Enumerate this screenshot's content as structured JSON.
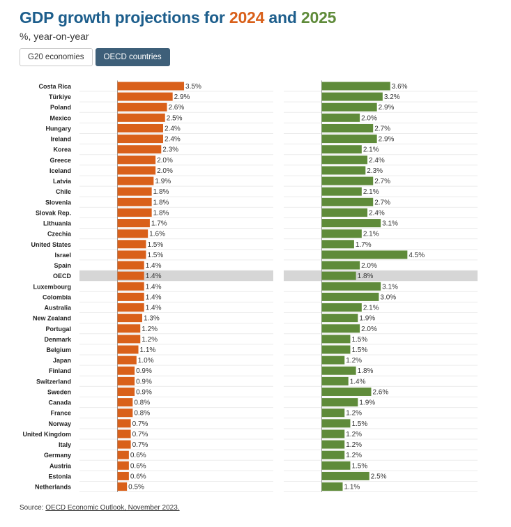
{
  "header": {
    "title_prefix": "GDP growth projections for ",
    "title_year1": "2024",
    "title_mid": " and ",
    "title_year2": "2025",
    "subtitle": "%, year-on-year"
  },
  "tabs": [
    {
      "label": "G20 economies",
      "active": false
    },
    {
      "label": "OECD countries",
      "active": true
    }
  ],
  "source": {
    "prefix": "Source: ",
    "link_text": "OECD Economic Outlook, November 2023."
  },
  "colors": {
    "series_2024": "#d9601a",
    "series_2025": "#5f8b3a",
    "highlight_row": "#d6d6d6",
    "title_blue": "#1d5e8c",
    "tab_active": "#3e5f79"
  },
  "chart_data": {
    "type": "bar",
    "orientation": "horizontal",
    "highlight_category": "OECD",
    "categories": [
      "Costa Rica",
      "Türkiye",
      "Poland",
      "Mexico",
      "Hungary",
      "Ireland",
      "Korea",
      "Greece",
      "Iceland",
      "Latvia",
      "Chile",
      "Slovenia",
      "Slovak Rep.",
      "Lithuania",
      "Czechia",
      "United States",
      "Israel",
      "Spain",
      "OECD",
      "Luxembourg",
      "Colombia",
      "Australia",
      "New Zealand",
      "Portugal",
      "Denmark",
      "Belgium",
      "Japan",
      "Finland",
      "Switzerland",
      "Sweden",
      "Canada",
      "France",
      "Norway",
      "United Kingdom",
      "Italy",
      "Germany",
      "Austria",
      "Estonia",
      "Netherlands"
    ],
    "series": [
      {
        "values": [
          3.5,
          2.9,
          2.6,
          2.5,
          2.4,
          2.4,
          2.3,
          2.0,
          2.0,
          1.9,
          1.8,
          1.8,
          1.8,
          1.7,
          1.6,
          1.5,
          1.5,
          1.4,
          1.4,
          1.4,
          1.4,
          1.4,
          1.3,
          1.2,
          1.2,
          1.1,
          1.0,
          0.9,
          0.9,
          0.9,
          0.8,
          0.8,
          0.7,
          0.7,
          0.7,
          0.6,
          0.6,
          0.6,
          0.5
        ],
        "labels": [
          "3.5%",
          "2.9%",
          "2.6%",
          "2.5%",
          "2.4%",
          "2.4%",
          "2.3%",
          "2.0%",
          "2.0%",
          "1.9%",
          "1.8%",
          "1.8%",
          "1.8%",
          "1.7%",
          "1.6%",
          "1.5%",
          "1.5%",
          "1.4%",
          "1.4%",
          "1.4%",
          "1.4%",
          "1.4%",
          "1.3%",
          "1.2%",
          "1.2%",
          "1.1%",
          "1.0%",
          "0.9%",
          "0.9%",
          "0.9%",
          "0.8%",
          "0.8%",
          "0.7%",
          "0.7%",
          "0.7%",
          "0.6%",
          "0.6%",
          "0.6%",
          "0.5%"
        ],
        "color": "#d9601a"
      },
      {
        "values": [
          3.6,
          3.2,
          2.9,
          2.0,
          2.7,
          2.9,
          2.1,
          2.4,
          2.3,
          2.7,
          2.1,
          2.7,
          2.4,
          3.1,
          2.1,
          1.7,
          4.5,
          2.0,
          1.8,
          3.1,
          3.0,
          2.1,
          1.9,
          2.0,
          1.5,
          1.5,
          1.2,
          1.8,
          1.4,
          2.6,
          1.9,
          1.2,
          1.5,
          1.2,
          1.2,
          1.2,
          1.5,
          2.5,
          1.1
        ],
        "labels": [
          "3.6%",
          "3.2%",
          "2.9%",
          "2.0%",
          "2.7%",
          "2.9%",
          "2.1%",
          "2.4%",
          "2.3%",
          "2.7%",
          "2.1%",
          "2.7%",
          "2.4%",
          "3.1%",
          "2.1%",
          "1.7%",
          "4.5%",
          "2.0%",
          "1.8%",
          "3.1%",
          "3.0%",
          "2.1%",
          "1.9%",
          "2.0%",
          "1.5%",
          "1.5%",
          "1.2%",
          "1.8%",
          "1.4%",
          "2.6%",
          "1.9%",
          "1.2%",
          "1.5%",
          "1.2%",
          "1.2%",
          "1.2%",
          "1.5%",
          "2.5%",
          "1.1%"
        ],
        "color": "#5f8b3a"
      }
    ]
  }
}
